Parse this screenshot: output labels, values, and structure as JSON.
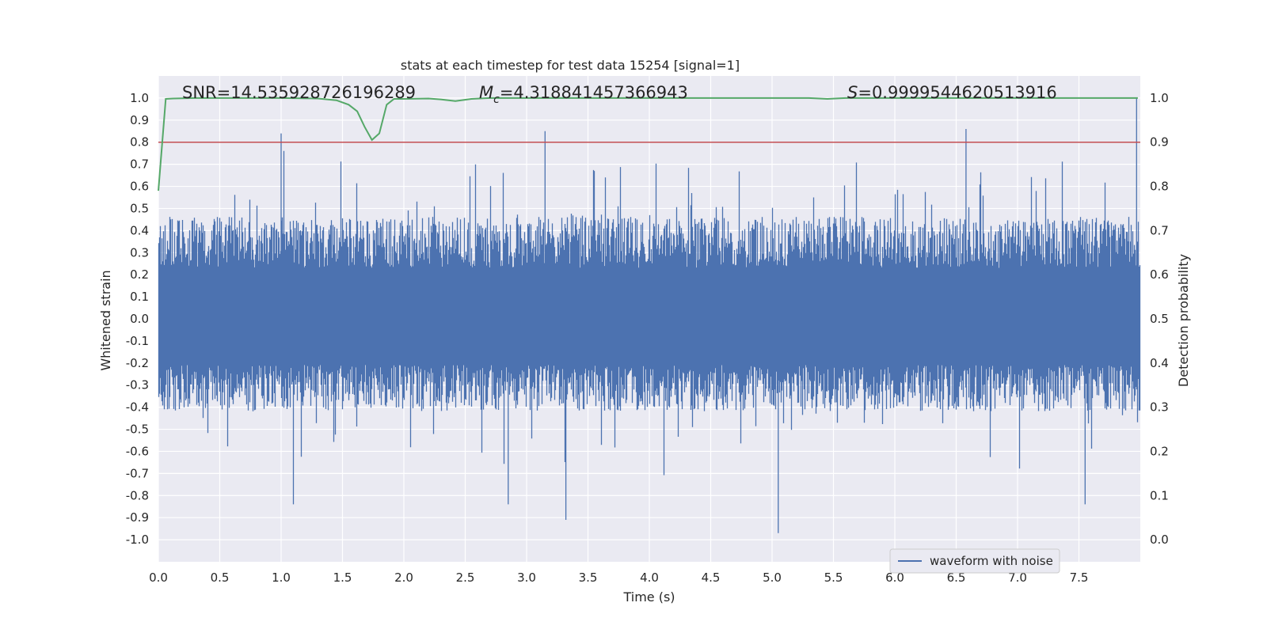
{
  "chart_data": {
    "type": "line",
    "title": "stats at each timestep for test data 15254 [signal=1]",
    "xlabel": "Time (s)",
    "ylabel": "Whitened strain",
    "ylabel_right": "Detection probability",
    "xlim": [
      0.0,
      8.0
    ],
    "ylim": [
      -1.1,
      1.1
    ],
    "ylim_right": [
      -0.05,
      1.05
    ],
    "x_ticks": [
      "0.0",
      "0.5",
      "1.0",
      "1.5",
      "2.0",
      "2.5",
      "3.0",
      "3.5",
      "4.0",
      "4.5",
      "5.0",
      "5.5",
      "6.0",
      "6.5",
      "7.0",
      "7.5"
    ],
    "x_tick_values": [
      0.0,
      0.5,
      1.0,
      1.5,
      2.0,
      2.5,
      3.0,
      3.5,
      4.0,
      4.5,
      5.0,
      5.5,
      6.0,
      6.5,
      7.0,
      7.5
    ],
    "y_ticks": [
      "1.0",
      "0.9",
      "0.8",
      "0.7",
      "0.6",
      "0.5",
      "0.4",
      "0.3",
      "0.2",
      "0.1",
      "0.0",
      "-0.1",
      "-0.2",
      "-0.3",
      "-0.4",
      "-0.5",
      "-0.6",
      "-0.7",
      "-0.8",
      "-0.9",
      "-1.0"
    ],
    "y_tick_values": [
      1.0,
      0.9,
      0.8,
      0.7,
      0.6,
      0.5,
      0.4,
      0.3,
      0.2,
      0.1,
      0.0,
      -0.1,
      -0.2,
      -0.3,
      -0.4,
      -0.5,
      -0.6,
      -0.7,
      -0.8,
      -0.9,
      -1.0
    ],
    "y_right_ticks": [
      "1.0",
      "0.9",
      "0.8",
      "0.7",
      "0.6",
      "0.5",
      "0.4",
      "0.3",
      "0.2",
      "0.1",
      "0.0"
    ],
    "y_right_tick_values": [
      1.0,
      0.9,
      0.8,
      0.7,
      0.6,
      0.5,
      0.4,
      0.3,
      0.2,
      0.1,
      0.0
    ],
    "annotations": {
      "snr": "SNR=14.535928726196289",
      "mc_symbol": "M",
      "mc_sub": "c",
      "mc_value": "=4.318841457366943",
      "s_symbol": "S",
      "s_value": "=0.9999544620513916"
    },
    "legend": {
      "label": "waveform with noise",
      "placement": "lower-right"
    },
    "threshold": {
      "value": 0.9,
      "axis": "right",
      "color": "#c44e52"
    },
    "series": [
      {
        "name": "waveform with noise",
        "axis": "left",
        "color": "#4c72b0",
        "style": "dense noise trace",
        "approx_envelope": {
          "typical_max": 0.42,
          "typical_min": -0.38,
          "peak_max": 1.0,
          "peak_min": -0.97
        },
        "notable_peaks": [
          {
            "x": 1.0,
            "y": 0.84
          },
          {
            "x": 3.15,
            "y": 0.85
          },
          {
            "x": 6.58,
            "y": 0.86
          },
          {
            "x": 7.97,
            "y": 1.0
          },
          {
            "x": 3.32,
            "y": -0.91
          },
          {
            "x": 5.05,
            "y": -0.97
          },
          {
            "x": 1.1,
            "y": -0.84
          },
          {
            "x": 2.85,
            "y": -0.84
          },
          {
            "x": 7.55,
            "y": -0.84
          }
        ]
      },
      {
        "name": "detection probability",
        "axis": "right",
        "color": "#55a868",
        "x": [
          0.0,
          0.06,
          0.12,
          0.3,
          0.6,
          1.0,
          1.3,
          1.45,
          1.55,
          1.62,
          1.68,
          1.74,
          1.8,
          1.86,
          1.92,
          2.0,
          2.2,
          2.3,
          2.42,
          2.55,
          2.7,
          3.0,
          4.0,
          5.0,
          5.3,
          5.45,
          5.6,
          6.0,
          7.0,
          7.98
        ],
        "y": [
          0.79,
          0.998,
          0.999,
          1.0,
          1.0,
          1.0,
          0.999,
          0.995,
          0.985,
          0.97,
          0.935,
          0.905,
          0.92,
          0.985,
          0.998,
          0.998,
          0.999,
          0.997,
          0.993,
          0.998,
          1.0,
          1.0,
          1.0,
          1.0,
          1.0,
          0.998,
          1.0,
          1.0,
          1.0,
          1.0
        ]
      }
    ]
  }
}
